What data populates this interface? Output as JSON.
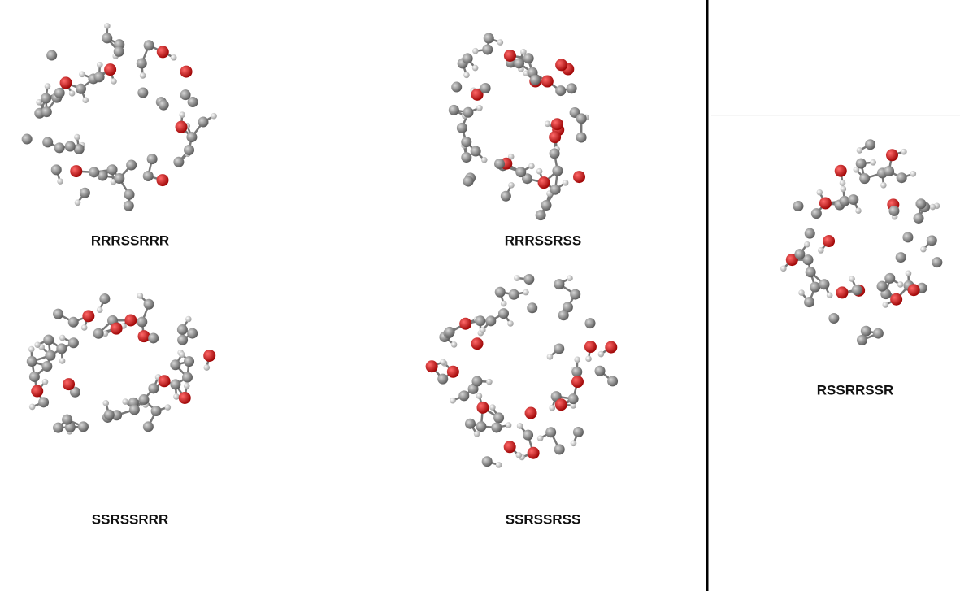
{
  "molecules": [
    {
      "label": "RRRSSRRR"
    },
    {
      "label": "RRRSSRSS"
    },
    {
      "label": "SSRSSRRR"
    },
    {
      "label": "SSRSSRSS"
    },
    {
      "label": "RSSRRSSR"
    }
  ]
}
